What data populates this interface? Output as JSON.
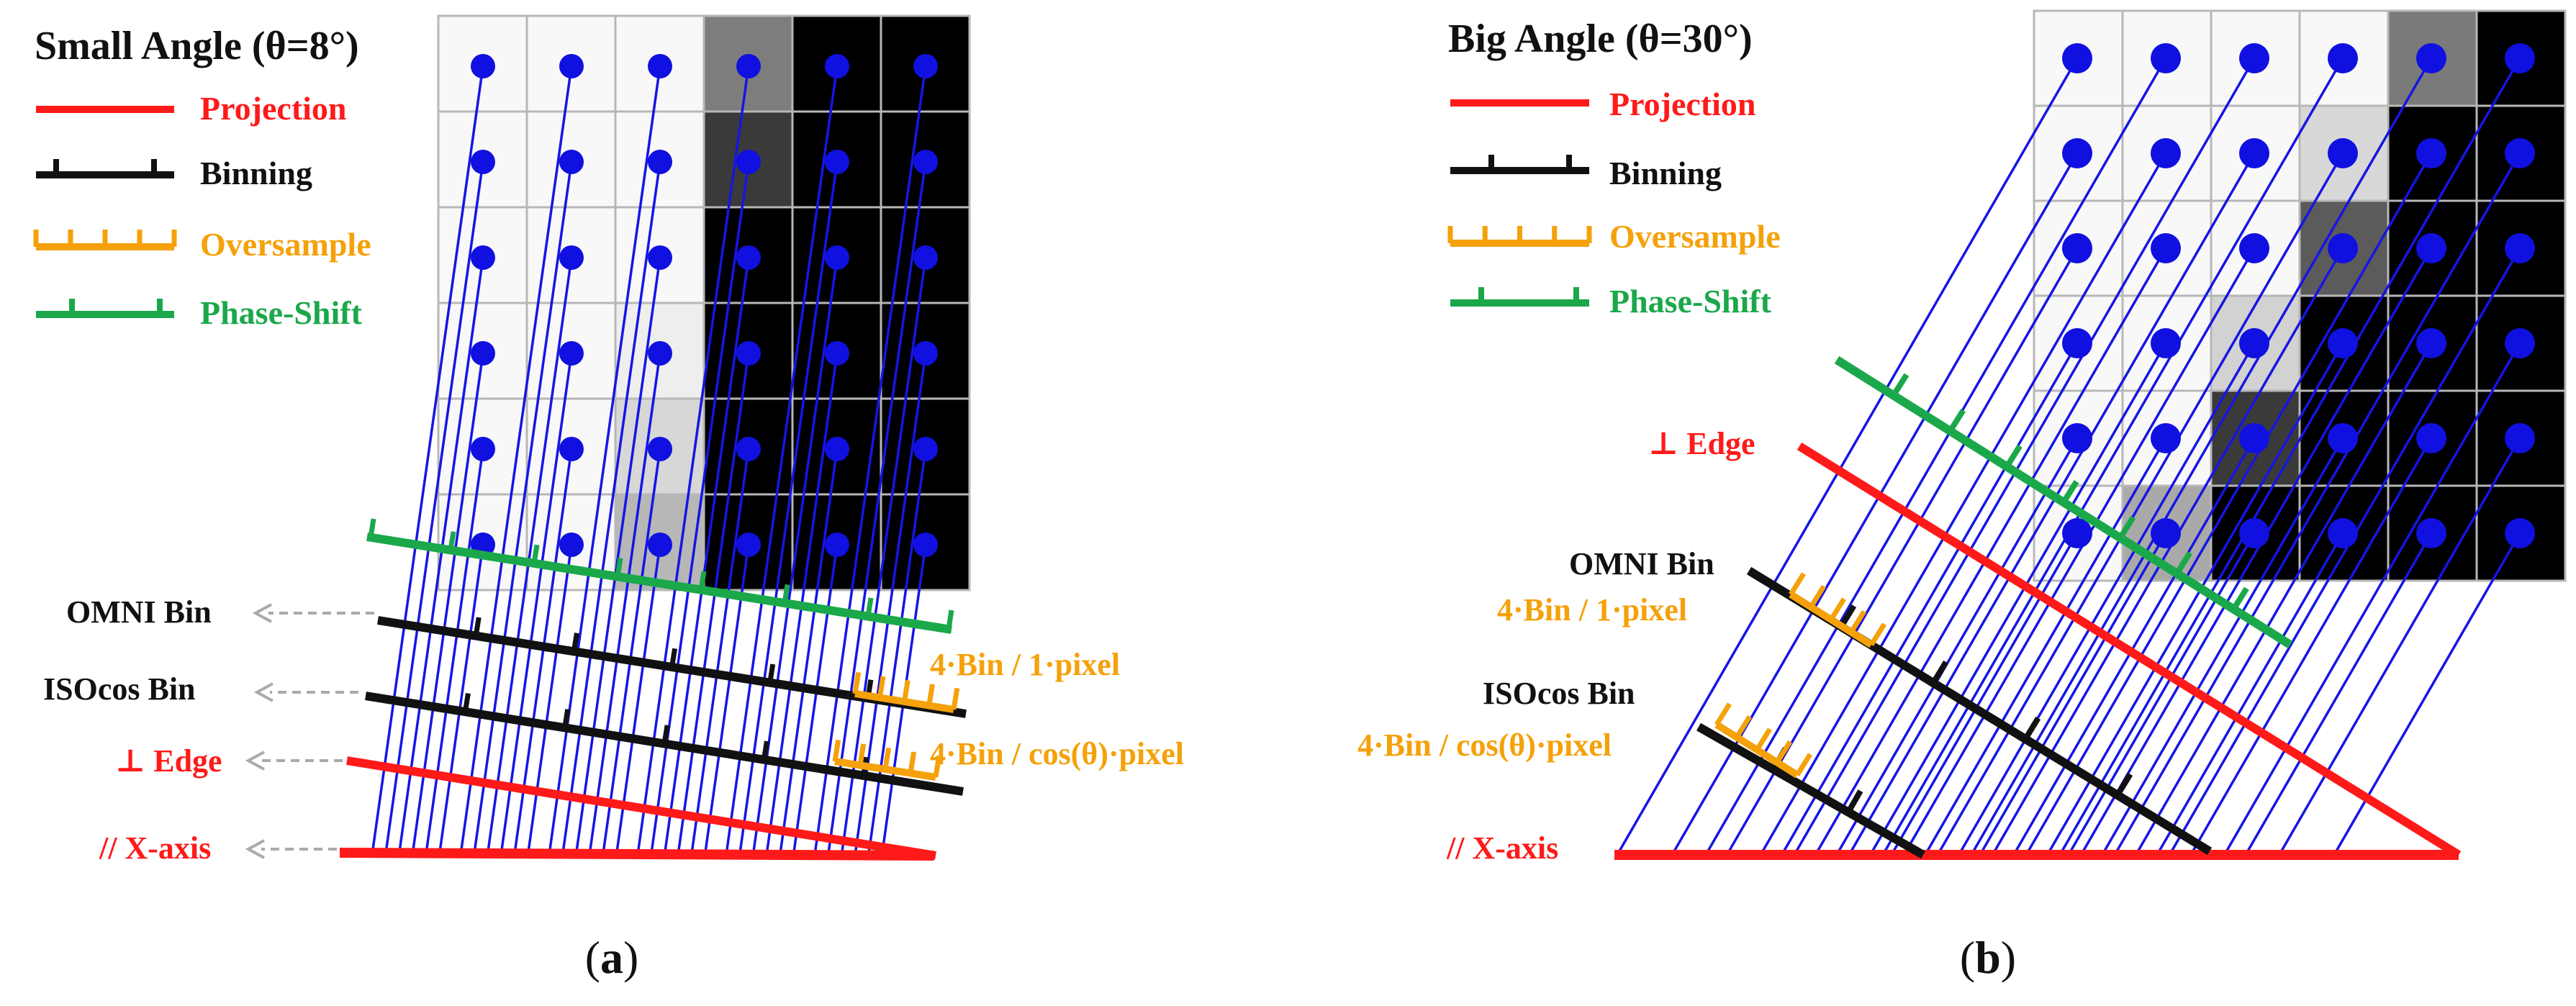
{
  "figure": {
    "panel_a": {
      "title": "Small Angle (θ=8°)",
      "legend": {
        "projection": "Projection",
        "binning": "Binning",
        "oversample": "Oversample",
        "phase_shift": "Phase-Shift"
      },
      "labels": {
        "omni_bin": "OMNI Bin",
        "isocos_bin": "ISOcos Bin",
        "perp_edge": "⊥ Edge",
        "parallel_x_axis": "// X-axis",
        "omni_ratio": "4·Bin / 1·pixel",
        "isocos_ratio": "4·Bin / cos(θ)·pixel"
      },
      "caption_open": "(",
      "caption_letter": "a",
      "caption_close": ")"
    },
    "panel_b": {
      "title": "Big Angle (θ=30°)",
      "legend": {
        "projection": "Projection",
        "binning": "Binning",
        "oversample": "Oversample",
        "phase_shift": "Phase-Shift"
      },
      "labels": {
        "perp_edge": "⊥ Edge",
        "omni_bin": "OMNI Bin",
        "omni_ratio": "4·Bin / 1·pixel",
        "isocos_bin": "ISOcos Bin",
        "isocos_ratio": "4·Bin / cos(θ)·pixel",
        "parallel_x_axis": "// X-axis"
      },
      "caption_open": "(",
      "caption_letter": "b",
      "caption_close": ")"
    },
    "colors": {
      "projection": "#ff1a1a",
      "binning": "#111111",
      "oversample": "#f5a10a",
      "phase_shift": "#1aa84a",
      "rays": "#1515e6",
      "dots": "#1010e0",
      "grid_line": "#b7b7b7",
      "leader": "#aaaaaa"
    },
    "grid_a": {
      "rows": 6,
      "cols": 6,
      "shades": [
        [
          "#f8f8f8",
          "#f8f8f8",
          "#f8f8f8",
          "#7d7d7d",
          "#000000",
          "#000000"
        ],
        [
          "#f8f8f8",
          "#f8f8f8",
          "#f8f8f8",
          "#3a3a3a",
          "#000000",
          "#000000"
        ],
        [
          "#f8f8f8",
          "#f8f8f8",
          "#f8f8f8",
          "#000000",
          "#000000",
          "#000000"
        ],
        [
          "#f8f8f8",
          "#f8f8f8",
          "#eeeeee",
          "#000000",
          "#000000",
          "#000000"
        ],
        [
          "#f8f8f8",
          "#f8f8f8",
          "#d7d7d7",
          "#000000",
          "#000000",
          "#000000"
        ],
        [
          "#f8f8f8",
          "#f8f8f8",
          "#b7b7b7",
          "#000000",
          "#000000",
          "#000000"
        ]
      ]
    },
    "grid_b": {
      "rows": 6,
      "cols": 6,
      "shades": [
        [
          "#f8f8f8",
          "#f8f8f8",
          "#f8f8f8",
          "#f8f8f8",
          "#7a7a7a",
          "#000000"
        ],
        [
          "#f8f8f8",
          "#f8f8f8",
          "#f8f8f8",
          "#d8d8d8",
          "#000000",
          "#000000"
        ],
        [
          "#f8f8f8",
          "#f8f8f8",
          "#f8f8f8",
          "#5b5b5b",
          "#000000",
          "#000000"
        ],
        [
          "#f8f8f8",
          "#f8f8f8",
          "#d2d2d2",
          "#000000",
          "#000000",
          "#000000"
        ],
        [
          "#f8f8f8",
          "#f8f8f8",
          "#3a3a3a",
          "#000000",
          "#000000",
          "#000000"
        ],
        [
          "#f8f8f8",
          "#a9a9a9",
          "#000000",
          "#000000",
          "#000000",
          "#000000"
        ]
      ]
    }
  }
}
